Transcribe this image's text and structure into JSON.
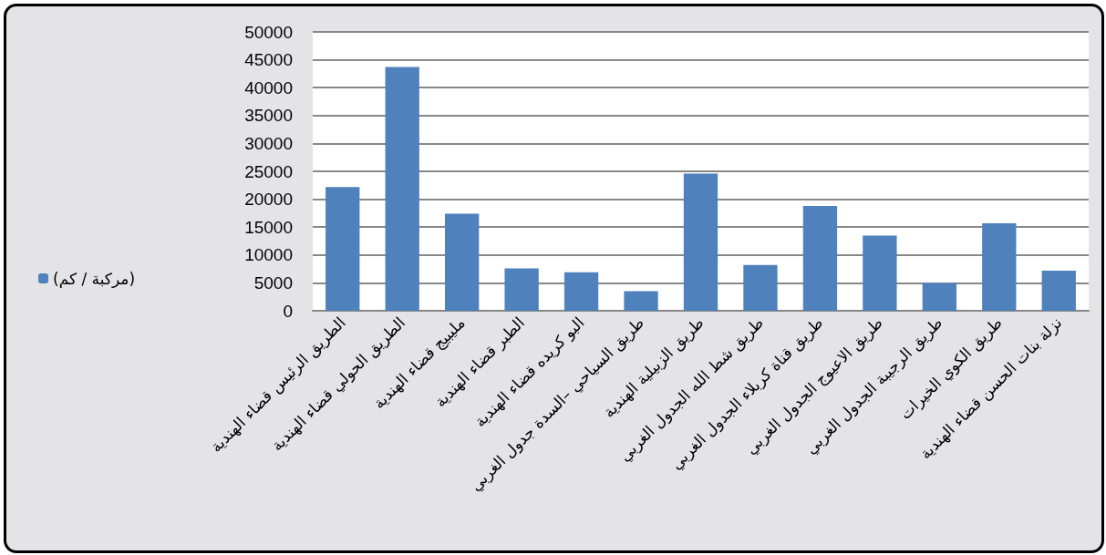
{
  "chart_data": {
    "type": "bar",
    "categories": [
      "الطريق الرئيس قضاء الهندية",
      "الطريق الحولي قضاء الهندية",
      "مليبيج قضاء الهندية",
      "الطبر قضاء الهندية",
      "البو كريده قضاء الهندية",
      "طريق السياحي –السدة جدول الغربي",
      "طريق الزبيلية الهندية",
      "طريق شط الله الجدول الغربي",
      "طريق قناة كربلاء الجدول الغربي",
      "طريق الاعيوج الجدول الغربي",
      "طريق الرجيبة الجدول الغربي",
      "طريق الكوي الخيرات",
      "نزلة بنات الحسن قضاء الهندية"
    ],
    "series": [
      {
        "name": "(مركبة / كم)",
        "color": "#4f81bd",
        "values": [
          22200,
          43700,
          17400,
          7600,
          6900,
          3500,
          24600,
          8200,
          18800,
          13500,
          5000,
          15700,
          7200
        ]
      }
    ],
    "ylim": [
      0,
      50000
    ],
    "yticks": [
      0,
      5000,
      10000,
      15000,
      20000,
      25000,
      30000,
      35000,
      40000,
      45000,
      50000
    ],
    "grid": "y",
    "legend": "left"
  }
}
